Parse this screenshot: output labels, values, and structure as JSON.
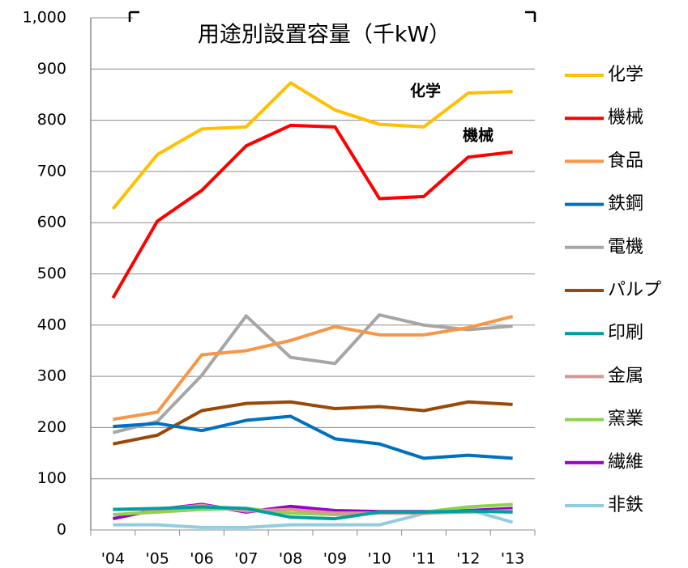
{
  "chart_data": {
    "type": "line",
    "title": "用途別設置容量（千kW）",
    "categories": [
      "'04",
      "'05",
      "'06",
      "'07",
      "'08",
      "'09",
      "'10",
      "'11",
      "'12",
      "'13"
    ],
    "ylim": [
      0,
      1000
    ],
    "yticks": [
      0,
      100,
      200,
      300,
      400,
      500,
      600,
      700,
      800,
      900,
      {
        "value": 1000,
        "label": "1,000"
      }
    ],
    "grid": true,
    "legend": "right",
    "annotations": [
      "化学",
      "機械"
    ],
    "series": [
      {
        "name": "化学",
        "color": "#ffc000",
        "values": [
          627,
          733,
          783,
          787,
          873,
          820,
          792,
          787,
          853,
          856
        ]
      },
      {
        "name": "機械",
        "color": "#ff0000",
        "values": [
          453,
          603,
          663,
          750,
          790,
          787,
          647,
          651,
          728,
          738
        ]
      },
      {
        "name": "食品",
        "color": "#f79646",
        "values": [
          216,
          230,
          342,
          350,
          370,
          397,
          381,
          381,
          395,
          417
        ]
      },
      {
        "name": "鉄鋼",
        "color": "#0070c0",
        "values": [
          202,
          208,
          194,
          214,
          222,
          178,
          168,
          140,
          146,
          140
        ]
      },
      {
        "name": "電機",
        "color": "#a6a6a6",
        "values": [
          190,
          212,
          302,
          418,
          337,
          325,
          420,
          400,
          391,
          398
        ]
      },
      {
        "name": "パルプ",
        "color": "#984807",
        "values": [
          168,
          185,
          233,
          247,
          250,
          237,
          241,
          233,
          250,
          245
        ]
      },
      {
        "name": "印刷",
        "color": "#00a0a0",
        "values": [
          40,
          42,
          45,
          42,
          25,
          22,
          35,
          35,
          37,
          35
        ]
      },
      {
        "name": "金属",
        "color": "#d99694",
        "values": [
          40,
          40,
          48,
          37,
          40,
          33,
          33,
          33,
          35,
          38
        ]
      },
      {
        "name": "窯業",
        "color": "#92d050",
        "values": [
          30,
          35,
          40,
          42,
          33,
          30,
          33,
          35,
          45,
          50
        ]
      },
      {
        "name": "繊維",
        "color": "#9900cc",
        "values": [
          22,
          40,
          50,
          35,
          46,
          38,
          36,
          36,
          38,
          42
        ]
      },
      {
        "name": "非鉄",
        "color": "#93cddd",
        "values": [
          10,
          10,
          5,
          5,
          10,
          10,
          10,
          32,
          40,
          15
        ]
      }
    ]
  }
}
